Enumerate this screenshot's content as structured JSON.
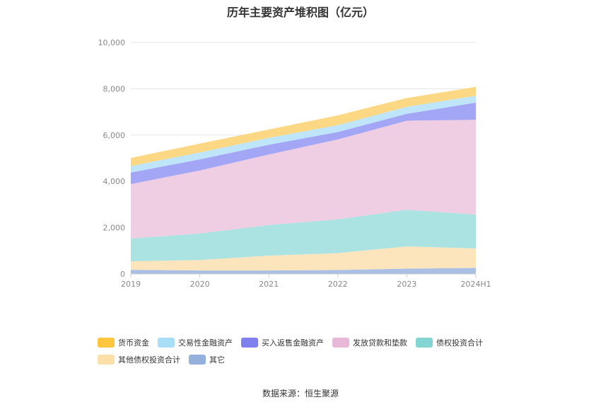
{
  "title": "历年主要资产堆积图（亿元）",
  "source": "数据来源：恒生聚源",
  "chart_data": {
    "type": "area",
    "stacked": true,
    "categories": [
      "2019",
      "2020",
      "2021",
      "2022",
      "2023",
      "2024H1"
    ],
    "ylim": [
      0,
      10000
    ],
    "yticks": [
      0,
      2000,
      4000,
      6000,
      8000,
      10000
    ],
    "ytick_labels": [
      "0",
      "2,000",
      "4,000",
      "6,000",
      "8,000",
      "10,000"
    ],
    "grid": true,
    "legend_position": "bottom",
    "series": [
      {
        "name": "其它",
        "color": "#a9bfe3",
        "values": [
          180,
          150,
          150,
          170,
          230,
          260
        ]
      },
      {
        "name": "其他债权投资合计",
        "color": "#fce4bd",
        "values": [
          370,
          450,
          640,
          730,
          960,
          840
        ]
      },
      {
        "name": "债权投资合计",
        "color": "#abe3e3",
        "values": [
          980,
          1150,
          1320,
          1460,
          1580,
          1470
        ]
      },
      {
        "name": "发放贷款和垫款",
        "color": "#efcee3",
        "values": [
          2350,
          2720,
          3050,
          3450,
          3850,
          4090
        ]
      },
      {
        "name": "买入返售金融资产",
        "color": "#a3a5f5",
        "values": [
          500,
          480,
          420,
          320,
          300,
          740
        ]
      },
      {
        "name": "交易性金融资产",
        "color": "#bfe5fa",
        "values": [
          280,
          300,
          300,
          300,
          300,
          300
        ]
      },
      {
        "name": "货币资金",
        "color": "#fdd884",
        "values": [
          350,
          380,
          360,
          420,
          380,
          380
        ]
      }
    ]
  },
  "legend": {
    "row1": [
      {
        "label": "货币资金",
        "color": "#fcc63d"
      },
      {
        "label": "交易性金融资产",
        "color": "#a9def7"
      },
      {
        "label": "买入返售金融资产",
        "color": "#7f7fee"
      },
      {
        "label": "发放贷款和垫款",
        "color": "#e7b8d8"
      },
      {
        "label": "债权投资合计",
        "color": "#85d4d4"
      }
    ],
    "row2": [
      {
        "label": "其他债权投资合计",
        "color": "#fddfa8"
      },
      {
        "label": "其它",
        "color": "#95b0dc"
      }
    ]
  }
}
